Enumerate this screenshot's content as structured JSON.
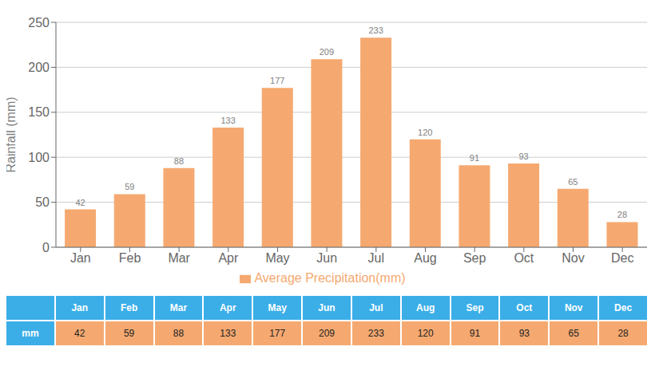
{
  "chart_data": {
    "type": "bar",
    "categories": [
      "Jan",
      "Feb",
      "Mar",
      "Apr",
      "May",
      "Jun",
      "Jul",
      "Aug",
      "Sep",
      "Oct",
      "Nov",
      "Dec"
    ],
    "series": [
      {
        "name": "Average Precipitation(mm)",
        "color": "#F5A970",
        "values": [
          42,
          59,
          88,
          133,
          177,
          209,
          233,
          120,
          91,
          93,
          65,
          28
        ]
      }
    ],
    "y_label": "Rainfall (mm)",
    "ylim": [
      0,
      250
    ],
    "yticks": [
      0,
      50,
      100,
      150,
      200,
      250
    ],
    "grid": true,
    "legend": "bottom",
    "data_labels": true,
    "table": {
      "row_label": "mm",
      "header_color": "#3BAEE8",
      "row_color": "#F5A970"
    }
  }
}
